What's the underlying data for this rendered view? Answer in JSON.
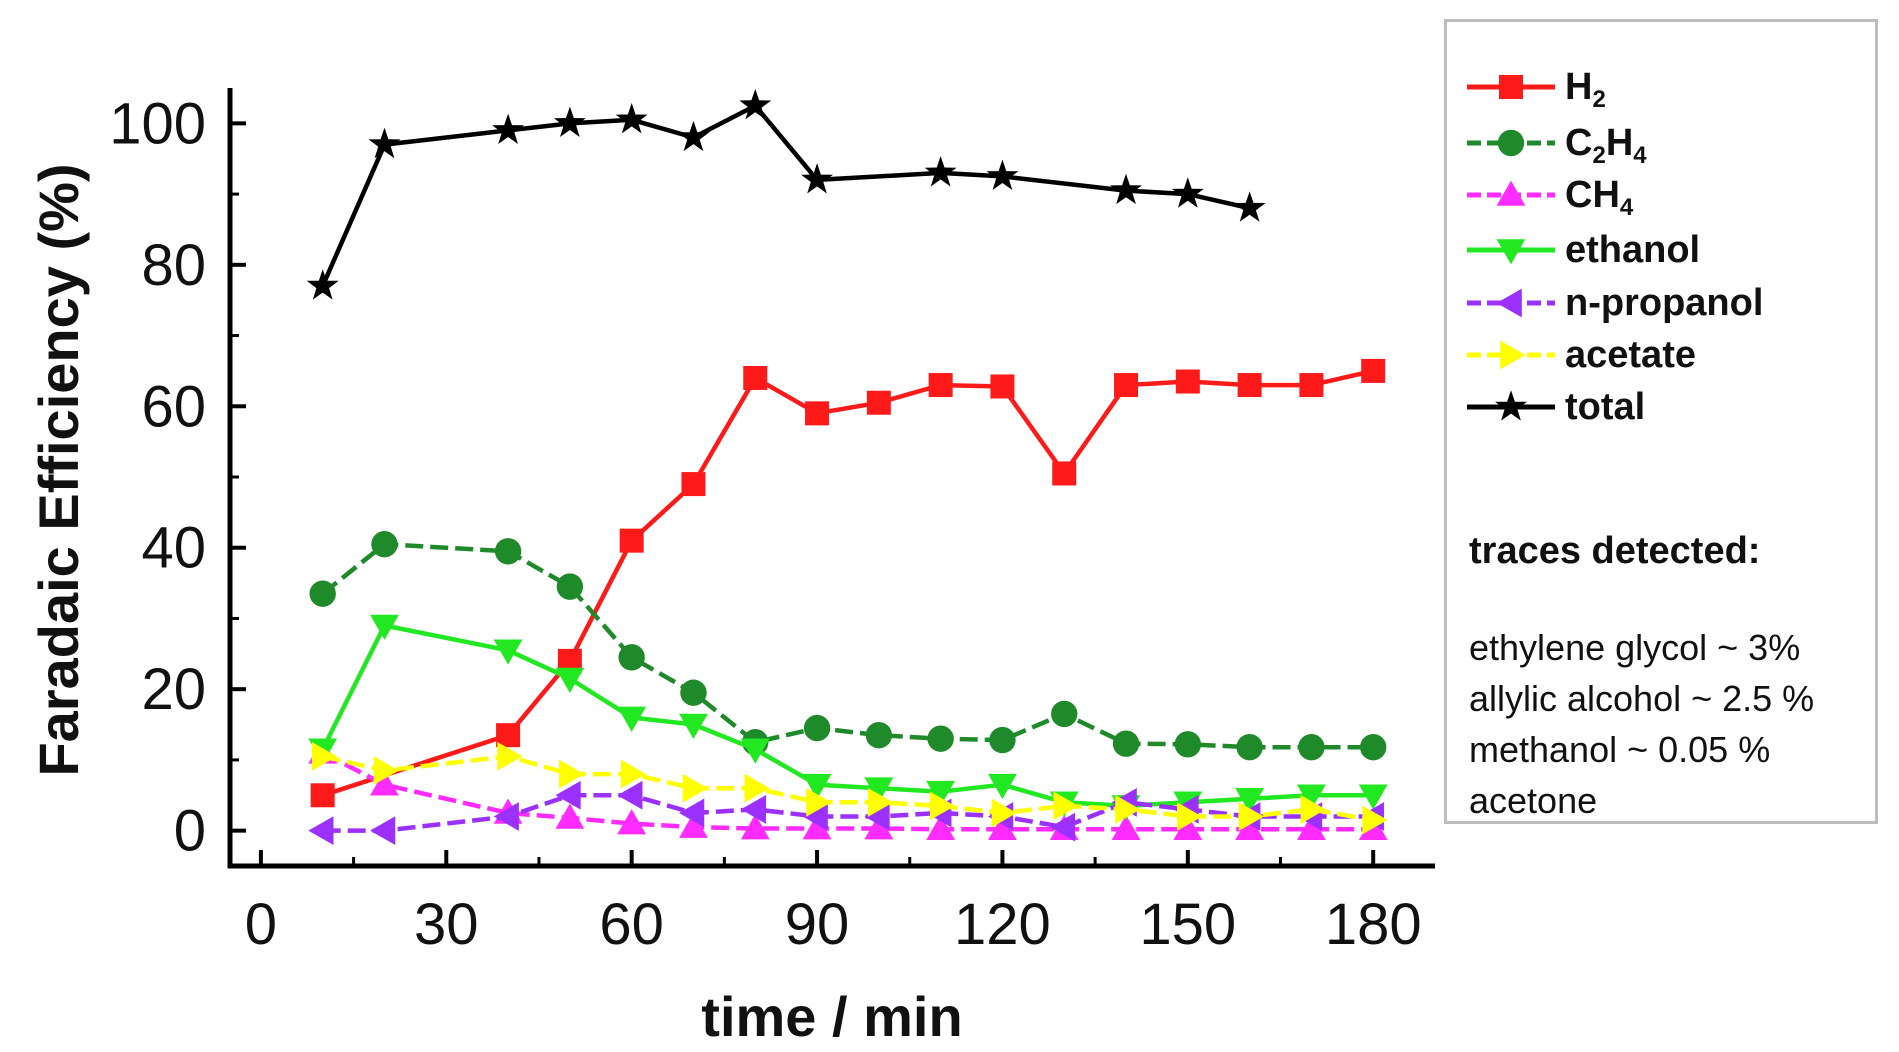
{
  "chart_data": {
    "type": "line",
    "xlabel": "time / min",
    "ylabel": "Faradaic Efficiency (%)",
    "xlim": [
      -5,
      190
    ],
    "ylim": [
      -5,
      105
    ],
    "xticks": [
      0,
      30,
      60,
      90,
      120,
      150,
      180
    ],
    "yticks": [
      0,
      20,
      40,
      60,
      80,
      100
    ],
    "legend_position": "right",
    "series": [
      {
        "name": "H",
        "sub": "2",
        "color": "#ff1a1a",
        "marker": "square",
        "dash": "solid",
        "x": [
          10,
          40,
          50,
          60,
          70,
          80,
          90,
          100,
          110,
          120,
          130,
          140,
          150,
          160,
          170,
          180
        ],
        "y": [
          5,
          13.5,
          24,
          41,
          49,
          64,
          59,
          60.5,
          63,
          62.8,
          50.5,
          63,
          63.5,
          63,
          63,
          65
        ]
      },
      {
        "name": "C",
        "sub": "2",
        "name2": "H",
        "sub2": "4",
        "color": "#1f8a2a",
        "marker": "circle",
        "dash": "dashed",
        "x": [
          10,
          20,
          40,
          50,
          60,
          70,
          80,
          90,
          100,
          110,
          120,
          130,
          140,
          150,
          160,
          170,
          180
        ],
        "y": [
          33.5,
          40.5,
          39.5,
          34.5,
          24.5,
          19.5,
          12.5,
          14.5,
          13.5,
          13,
          12.8,
          16.5,
          12.3,
          12.2,
          11.8,
          11.8,
          11.8
        ]
      },
      {
        "name": "CH",
        "sub": "4",
        "color": "#ff2bff",
        "marker": "triangle-up",
        "dash": "dashed",
        "x": [
          10,
          20,
          40,
          50,
          60,
          70,
          80,
          90,
          100,
          110,
          120,
          130,
          140,
          150,
          160,
          170,
          180
        ],
        "y": [
          11,
          6.5,
          2.5,
          1.8,
          1,
          0.5,
          0.3,
          0.3,
          0.3,
          0.2,
          0.2,
          0.2,
          0.2,
          0.2,
          0.2,
          0.2,
          0.2
        ]
      },
      {
        "name": "ethanol",
        "color": "#22e822",
        "marker": "triangle-down",
        "dash": "solid",
        "x": [
          10,
          20,
          40,
          50,
          60,
          70,
          80,
          90,
          100,
          110,
          120,
          130,
          140,
          150,
          160,
          170,
          180
        ],
        "y": [
          11.5,
          29,
          25.5,
          21.5,
          16,
          15,
          11.5,
          6.5,
          6,
          5.5,
          6.5,
          4,
          3.5,
          4,
          4.5,
          5,
          5
        ]
      },
      {
        "name": "n-propanol",
        "color": "#9b30ff",
        "marker": "triangle-left",
        "dash": "dashed",
        "x": [
          10,
          20,
          40,
          50,
          60,
          70,
          80,
          90,
          100,
          110,
          120,
          130,
          140,
          150,
          160,
          170,
          180
        ],
        "y": [
          0,
          0,
          2,
          5,
          5,
          2.5,
          3,
          2,
          2,
          2.5,
          2,
          0.5,
          4,
          3,
          2,
          2,
          2
        ]
      },
      {
        "name": "acetate",
        "color": "#ffff00",
        "marker": "triangle-right",
        "dash": "dashed",
        "x": [
          10,
          20,
          40,
          50,
          60,
          70,
          80,
          90,
          100,
          110,
          120,
          130,
          140,
          150,
          160,
          170,
          180
        ],
        "y": [
          10.5,
          8.5,
          10.5,
          8,
          8,
          6,
          6,
          4,
          4,
          3.5,
          2.5,
          3.5,
          3,
          2,
          2,
          3,
          1.5
        ]
      },
      {
        "name": "total",
        "color": "#000000",
        "marker": "star",
        "dash": "solid",
        "x": [
          10,
          20,
          40,
          50,
          60,
          70,
          80,
          90,
          110,
          120,
          140,
          150,
          160
        ],
        "y": [
          77,
          97,
          99,
          100,
          100.5,
          98,
          102.5,
          92,
          93,
          92.5,
          90.5,
          90,
          88
        ]
      }
    ]
  },
  "legend": {
    "traces_title": "traces detected:",
    "traces": [
      "ethylene glycol ~ 3%",
      "allylic alcohol ~ 2.5 %",
      "methanol ~ 0.05 %",
      "acetone"
    ]
  }
}
